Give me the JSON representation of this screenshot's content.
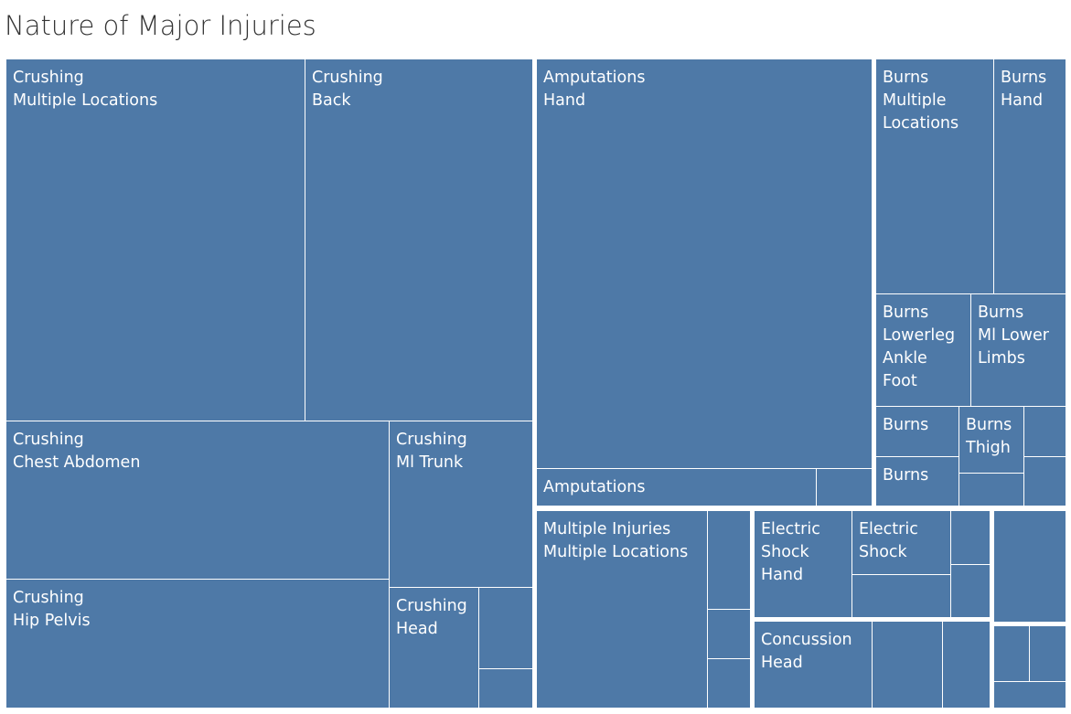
{
  "chart_data": {
    "type": "treemap",
    "title": "Nature of Major Injuries",
    "color": "#4e79a7",
    "groups": [
      {
        "name": "Crushing",
        "items": [
          {
            "nature": "Crushing",
            "location": "Multiple Locations",
            "label": "Crushing\nMultiple Locations"
          },
          {
            "nature": "Crushing",
            "location": "Back",
            "label": "Crushing\nBack"
          },
          {
            "nature": "Crushing",
            "location": "Chest Abdomen",
            "label": "Crushing\nChest Abdomen"
          },
          {
            "nature": "Crushing",
            "location": "Ml Trunk",
            "label": "Crushing\nMl Trunk"
          },
          {
            "nature": "Crushing",
            "location": "Hip Pelvis",
            "label": "Crushing\nHip Pelvis"
          },
          {
            "nature": "Crushing",
            "location": "Head",
            "label": "Crushing\nHead"
          },
          {
            "nature": "Crushing",
            "location": "",
            "label": ""
          },
          {
            "nature": "Crushing",
            "location": "",
            "label": ""
          }
        ]
      },
      {
        "name": "Amputations",
        "items": [
          {
            "nature": "Amputations",
            "location": "Hand",
            "label": "Amputations\nHand"
          },
          {
            "nature": "Amputations",
            "location": "",
            "label": "Amputations"
          },
          {
            "nature": "Amputations",
            "location": "",
            "label": ""
          }
        ]
      },
      {
        "name": "Burns",
        "items": [
          {
            "nature": "Burns",
            "location": "Multiple Locations",
            "label": "Burns\nMultiple\nLocations"
          },
          {
            "nature": "Burns",
            "location": "Hand",
            "label": "Burns\nHand"
          },
          {
            "nature": "Burns",
            "location": "Lowerleg Ankle Foot",
            "label": "Burns\nLowerleg\nAnkle\nFoot"
          },
          {
            "nature": "Burns",
            "location": "Ml Lower Limbs",
            "label": "Burns\nMl Lower\nLimbs"
          },
          {
            "nature": "Burns",
            "location": "",
            "label": "Burns"
          },
          {
            "nature": "Burns",
            "location": "Thigh",
            "label": "Burns\nThigh"
          },
          {
            "nature": "Burns",
            "location": "",
            "label": ""
          },
          {
            "nature": "Burns",
            "location": "",
            "label": "Burns"
          },
          {
            "nature": "Burns",
            "location": "",
            "label": ""
          },
          {
            "nature": "Burns",
            "location": "",
            "label": ""
          },
          {
            "nature": "Burns",
            "location": "",
            "label": ""
          }
        ]
      },
      {
        "name": "Multiple Injuries",
        "items": [
          {
            "nature": "Multiple Injuries",
            "location": "Multiple Locations",
            "label": "Multiple Injuries\nMultiple Locations"
          },
          {
            "nature": "Multiple Injuries",
            "location": "",
            "label": ""
          },
          {
            "nature": "Multiple Injuries",
            "location": "",
            "label": ""
          },
          {
            "nature": "Multiple Injuries",
            "location": "",
            "label": ""
          }
        ]
      },
      {
        "name": "Electric Shock",
        "items": [
          {
            "nature": "Electric Shock",
            "location": "Hand",
            "label": "Electric\nShock\nHand"
          },
          {
            "nature": "Electric Shock",
            "location": "",
            "label": "Electric\nShock"
          },
          {
            "nature": "Electric Shock",
            "location": "",
            "label": ""
          },
          {
            "nature": "Electric Shock",
            "location": "",
            "label": ""
          },
          {
            "nature": "Electric Shock",
            "location": "",
            "label": ""
          }
        ]
      },
      {
        "name": "Concussion",
        "items": [
          {
            "nature": "Concussion",
            "location": "Head",
            "label": "Concussion\nHead"
          },
          {
            "nature": "Concussion",
            "location": "",
            "label": ""
          },
          {
            "nature": "Concussion",
            "location": "",
            "label": ""
          }
        ]
      },
      {
        "name": "",
        "items": [
          {
            "nature": "",
            "location": "",
            "label": ""
          }
        ]
      },
      {
        "name": "",
        "items": [
          {
            "nature": "",
            "location": "",
            "label": ""
          },
          {
            "nature": "",
            "location": "",
            "label": ""
          },
          {
            "nature": "",
            "location": "",
            "label": ""
          }
        ]
      }
    ]
  }
}
